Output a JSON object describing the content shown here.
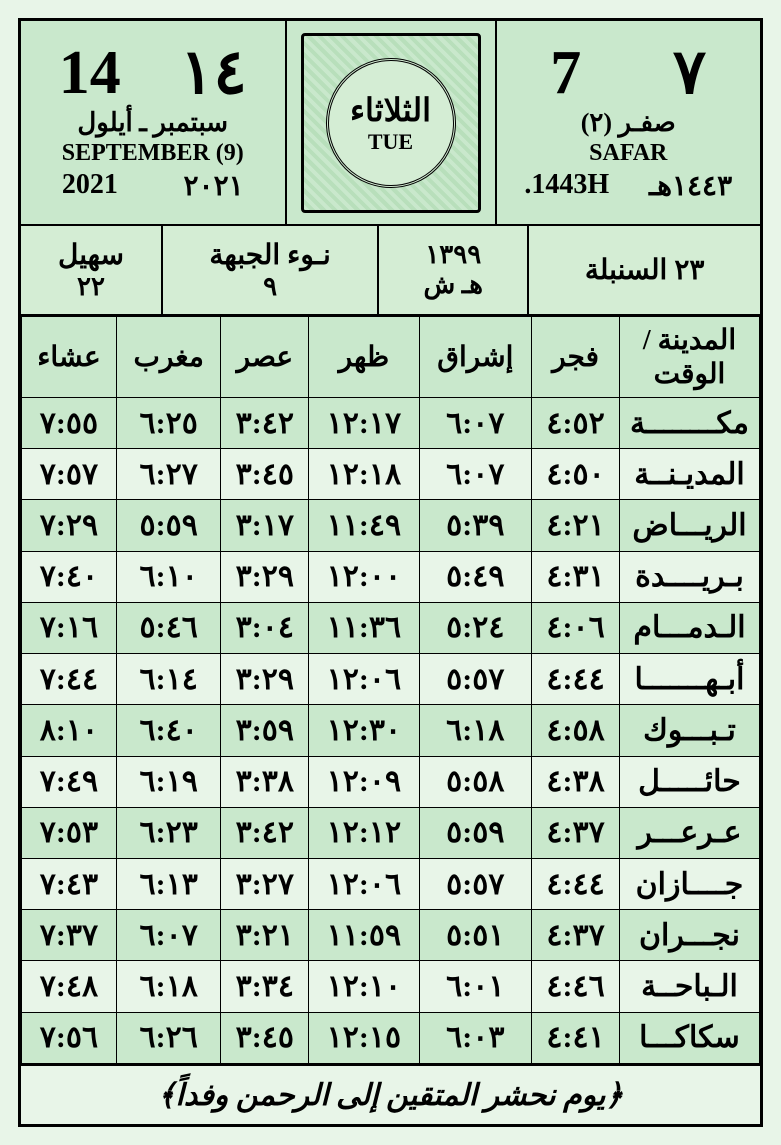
{
  "header": {
    "hijri": {
      "day_arabic": "٧",
      "day_latin": "7",
      "month_ar": "صفـر (٢)",
      "month_en": "SAFAR",
      "year_ar": "١٤٤٣هـ",
      "year_en": "1443H."
    },
    "gregorian": {
      "day_arabic": "١٤",
      "day_latin": "14",
      "month_ar": "سبتمبر ـ أيلول",
      "month_en": "SEPTEMBER (9)",
      "year_ar": "٢٠٢١",
      "year_en": "2021"
    },
    "day_seal": {
      "ar": "الثلاثاء",
      "en": "TUE"
    }
  },
  "subheader": {
    "sunbula": "٢٣ السنبلة",
    "persian": {
      "line1": "١٣٩٩",
      "line2": "هـ ش"
    },
    "naw": {
      "line1": "نـوء الجبهة",
      "line2": "٩"
    },
    "suhail": {
      "line1": "سهيل",
      "line2": "٢٢"
    }
  },
  "table": {
    "columns": [
      "المدينة / الوقت",
      "فجر",
      "إشراق",
      "ظهر",
      "عصر",
      "مغرب",
      "عشاء"
    ],
    "rows": [
      [
        "مكــــــــة",
        "٤:٥٢",
        "٦:٠٧",
        "١٢:١٧",
        "٣:٤٢",
        "٦:٢٥",
        "٧:٥٥"
      ],
      [
        "المديـنــة",
        "٤:٥٠",
        "٦:٠٧",
        "١٢:١٨",
        "٣:٤٥",
        "٦:٢٧",
        "٧:٥٧"
      ],
      [
        "الريـــاض",
        "٤:٢١",
        "٥:٣٩",
        "١١:٤٩",
        "٣:١٧",
        "٥:٥٩",
        "٧:٢٩"
      ],
      [
        "بـريــــدة",
        "٤:٣١",
        "٥:٤٩",
        "١٢:٠٠",
        "٣:٢٩",
        "٦:١٠",
        "٧:٤٠"
      ],
      [
        "الـدمـــام",
        "٤:٠٦",
        "٥:٢٤",
        "١١:٣٦",
        "٣:٠٤",
        "٥:٤٦",
        "٧:١٦"
      ],
      [
        "أبـهـــــــا",
        "٤:٤٤",
        "٥:٥٧",
        "١٢:٠٦",
        "٣:٢٩",
        "٦:١٤",
        "٧:٤٤"
      ],
      [
        "تـبـــوك",
        "٤:٥٨",
        "٦:١٨",
        "١٢:٣٠",
        "٣:٥٩",
        "٦:٤٠",
        "٨:١٠"
      ],
      [
        "حائـــــل",
        "٤:٣٨",
        "٥:٥٨",
        "١٢:٠٩",
        "٣:٣٨",
        "٦:١٩",
        "٧:٤٩"
      ],
      [
        "عـرعـــر",
        "٤:٣٧",
        "٥:٥٩",
        "١٢:١٢",
        "٣:٤٢",
        "٦:٢٣",
        "٧:٥٣"
      ],
      [
        "جــــازان",
        "٤:٤٤",
        "٥:٥٧",
        "١٢:٠٦",
        "٣:٢٧",
        "٦:١٣",
        "٧:٤٣"
      ],
      [
        "نجـــران",
        "٤:٣٧",
        "٥:٥١",
        "١١:٥٩",
        "٣:٢١",
        "٦:٠٧",
        "٧:٣٧"
      ],
      [
        "الـباحــة",
        "٤:٤٦",
        "٦:٠١",
        "١٢:١٠",
        "٣:٣٤",
        "٦:١٨",
        "٧:٤٨"
      ],
      [
        "سكاكـــا",
        "٤:٤١",
        "٦:٠٣",
        "١٢:١٥",
        "٣:٤٥",
        "٦:٢٦",
        "٧:٥٦"
      ]
    ]
  },
  "footer": "﴿يوم نحشر المتقين إلى الرحمن وفداً﴾",
  "colors": {
    "bg_page": "#e8f5e8",
    "bg_cell_light": "#e8f5e8",
    "bg_cell_dark": "#c9e8cc",
    "border": "#000000"
  }
}
